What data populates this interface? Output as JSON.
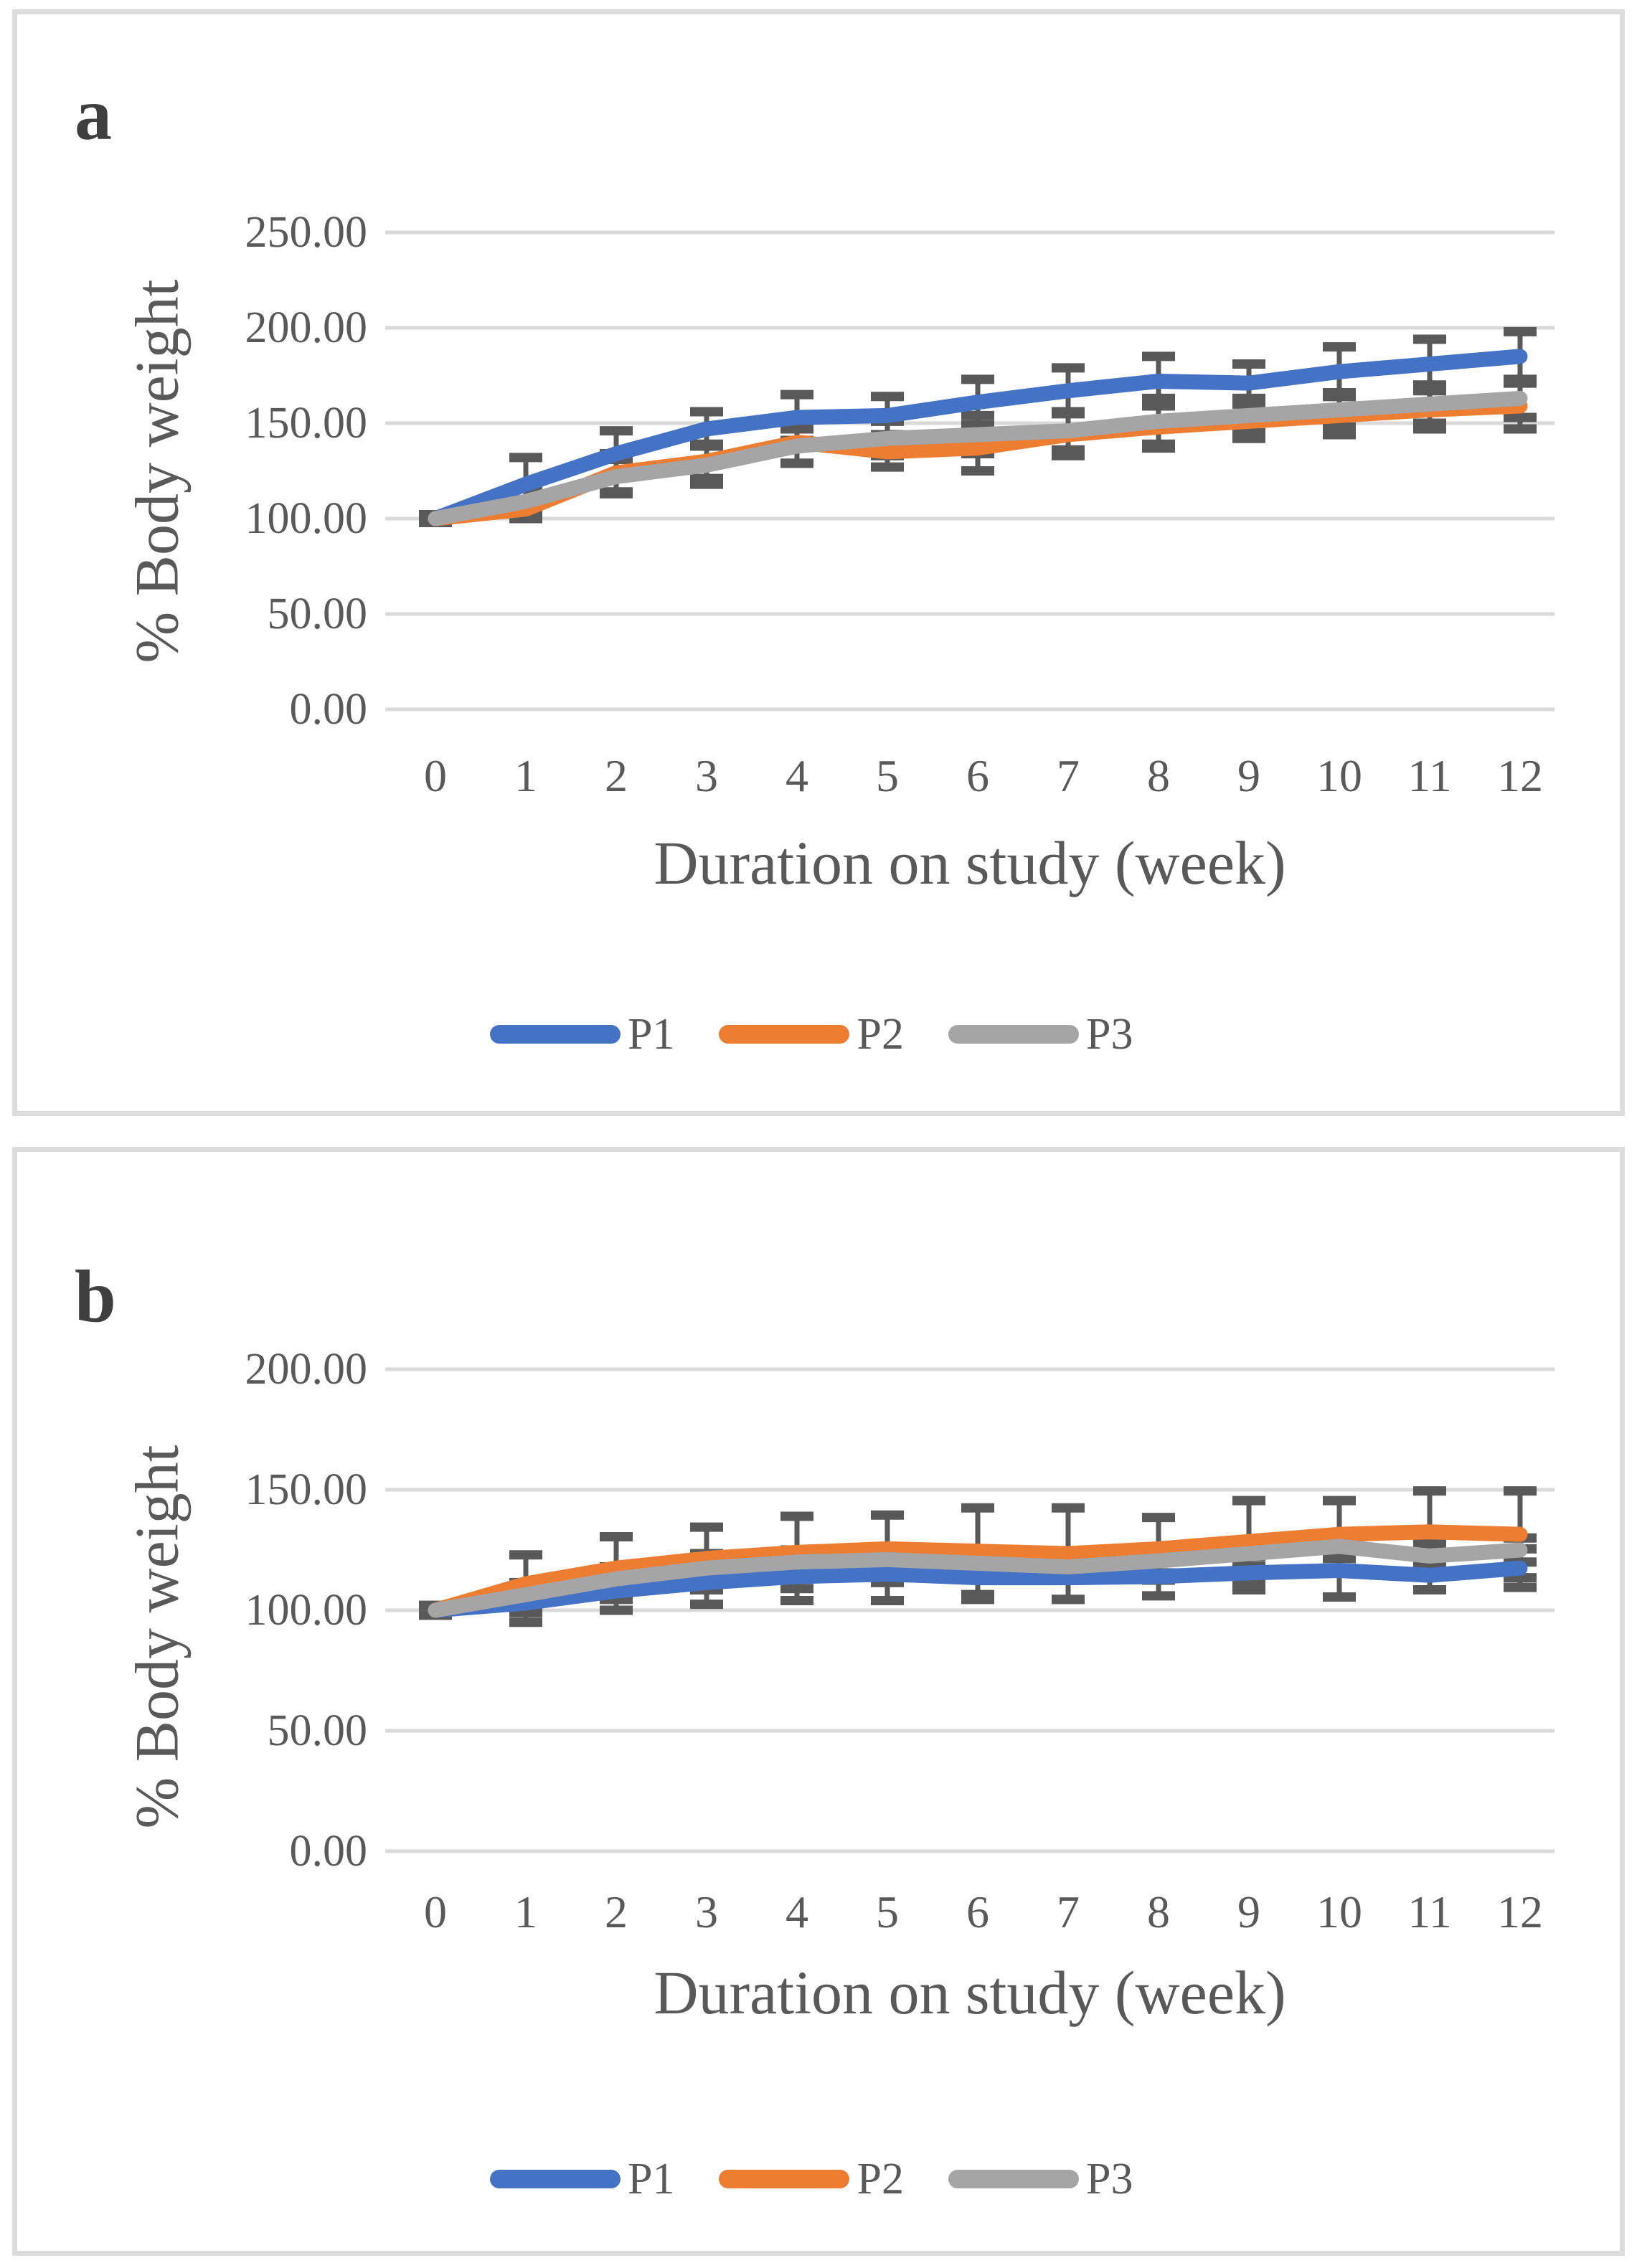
{
  "style": {
    "grid_color": "#d9d9d9",
    "error_bar_color": "#595959",
    "text_color": "#595959",
    "panel_border_color": "#dcdcdc",
    "background": "#ffffff"
  },
  "chart_data": [
    {
      "panel_label": "a",
      "type": "line",
      "x_label": "Duration on study (week)",
      "y_label": "% Body weight",
      "x": [
        0,
        1,
        2,
        3,
        4,
        5,
        6,
        7,
        8,
        9,
        10,
        11,
        12
      ],
      "x_tick_labels": [
        "0",
        "1",
        "2",
        "3",
        "4",
        "5",
        "6",
        "7",
        "8",
        "9",
        "10",
        "11",
        "12"
      ],
      "y_ticks": [
        {
          "value": 0,
          "label": "0.00"
        },
        {
          "value": 50,
          "label": "50.00"
        },
        {
          "value": 100,
          "label": "100.00"
        },
        {
          "value": 150,
          "label": "150.00"
        },
        {
          "value": 200,
          "label": "200.00"
        },
        {
          "value": 250,
          "label": "250.00"
        }
      ],
      "ylim": [
        0,
        250
      ],
      "grid": true,
      "legend_position": "bottom",
      "series": [
        {
          "name": "P1",
          "color": "#4472C4",
          "values": [
            100,
            118,
            134,
            147,
            153,
            154,
            161,
            167,
            172,
            171,
            177,
            181,
            185
          ],
          "errors": [
            2,
            14,
            12,
            9,
            12,
            10,
            12,
            12,
            13,
            10,
            13,
            13,
            13
          ]
        },
        {
          "name": "P2",
          "color": "#ED7D31",
          "values": [
            100,
            105,
            124,
            130,
            140,
            135,
            137,
            144,
            148,
            151,
            154,
            157,
            159
          ],
          "errors": [
            2,
            5,
            10,
            9,
            11,
            8,
            12,
            11,
            11,
            9,
            10,
            10,
            12
          ]
        },
        {
          "name": "P3",
          "color": "#A5A5A5",
          "values": [
            100,
            109,
            122,
            128,
            138,
            142,
            144,
            146,
            151,
            154,
            157,
            160,
            163
          ],
          "errors": [
            2,
            7,
            9,
            10,
            9,
            9,
            10,
            10,
            12,
            9,
            9,
            10,
            10
          ]
        }
      ]
    },
    {
      "panel_label": "b",
      "type": "line",
      "x_label": "Duration on study (week)",
      "y_label": "% Body weight",
      "x": [
        0,
        1,
        2,
        3,
        4,
        5,
        6,
        7,
        8,
        9,
        10,
        11,
        12
      ],
      "x_tick_labels": [
        "0",
        "1",
        "2",
        "3",
        "4",
        "5",
        "6",
        "7",
        "8",
        "9",
        "10",
        "11",
        "12"
      ],
      "y_ticks": [
        {
          "value": 0,
          "label": "0.00"
        },
        {
          "value": 50,
          "label": "50.00"
        },
        {
          "value": 100,
          "label": "100.00"
        },
        {
          "value": 150,
          "label": "150.00"
        },
        {
          "value": 200,
          "label": "200.00"
        }
      ],
      "ylim": [
        0,
        200
      ],
      "grid": true,
      "legend_position": "bottom",
      "series": [
        {
          "name": "P1",
          "color": "#4472C4",
          "values": [
            100,
            103,
            108,
            111.5,
            114,
            115,
            113.5,
            113.5,
            114,
            115.5,
            116.5,
            114.5,
            117.5
          ],
          "errors": [
            2,
            8,
            8,
            9,
            10,
            11,
            9,
            9,
            8,
            7,
            11,
            6,
            8
          ]
        },
        {
          "name": "P2",
          "color": "#ED7D31",
          "values": [
            100,
            111,
            117.5,
            121.5,
            124,
            125.5,
            124.5,
            123.5,
            125.5,
            128.5,
            131.5,
            132.5,
            131.5
          ],
          "errors": [
            2,
            12,
            13,
            13,
            15,
            14,
            18,
            19,
            13,
            17,
            14,
            17,
            18
          ]
        },
        {
          "name": "P3",
          "color": "#A5A5A5",
          "values": [
            100,
            106.5,
            113,
            117.5,
            120,
            121,
            119.5,
            118,
            120.5,
            123.5,
            126.5,
            122.5,
            125
          ],
          "errors": [
            2,
            5,
            5,
            6,
            5,
            5,
            5,
            5,
            5,
            5,
            5,
            5,
            5
          ]
        }
      ]
    }
  ]
}
